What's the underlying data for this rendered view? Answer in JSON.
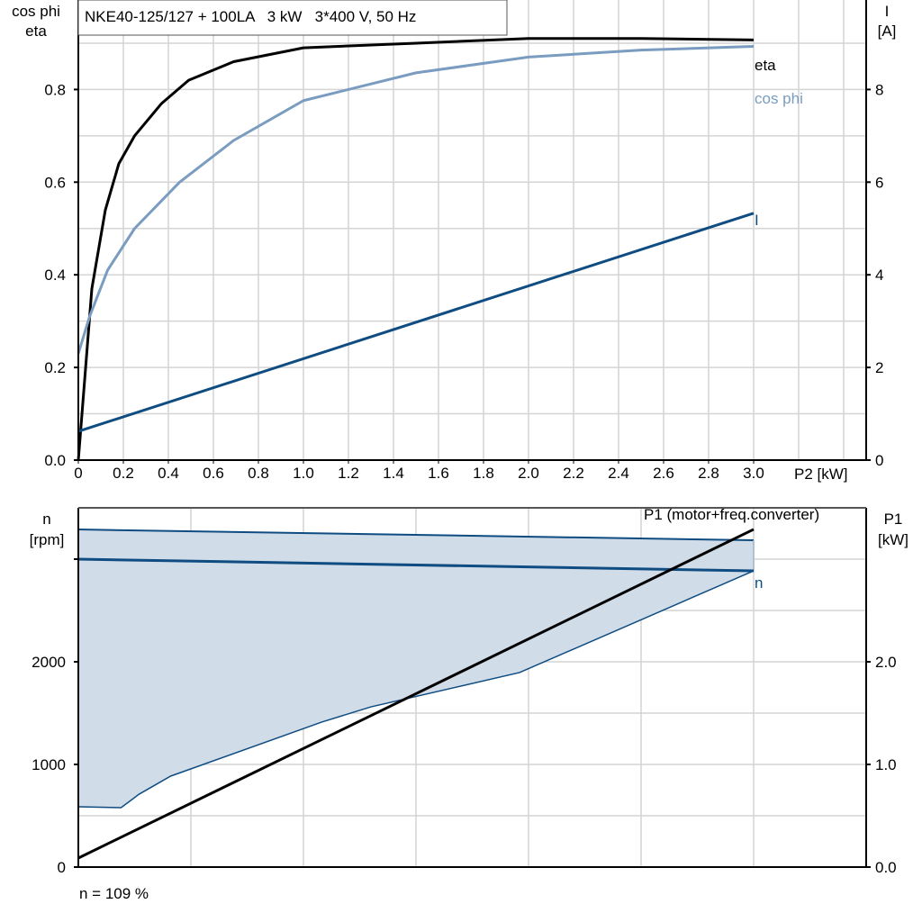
{
  "chart_data": [
    {
      "type": "line",
      "title": "NKE40-125/127 + 100LA   3 kW   3*400 V, 50 Hz",
      "xlabel": "P2 [kW]",
      "ylabel_left": [
        "cos phi",
        "eta"
      ],
      "ylabel_right": [
        "I",
        "[A]"
      ],
      "xlim": [
        0,
        3.5
      ],
      "ylim_left": [
        0,
        1.0
      ],
      "ylim_right": [
        0,
        10
      ],
      "x_ticks": [
        "0",
        "0.2",
        "0.4",
        "0.6",
        "0.8",
        "1.0",
        "1.2",
        "1.4",
        "1.6",
        "1.8",
        "2.0",
        "2.2",
        "2.4",
        "2.6",
        "2.8",
        "3.0"
      ],
      "y_ticks_left": [
        "0.0",
        "0.2",
        "0.4",
        "0.6",
        "0.8"
      ],
      "y_ticks_right": [
        "0",
        "2",
        "4",
        "6",
        "8"
      ],
      "grid": true,
      "series": [
        {
          "name": "eta",
          "axis": "left",
          "color": "#000000",
          "x": [
            0,
            0.06,
            0.12,
            0.18,
            0.25,
            0.37,
            0.49,
            0.69,
            1.0,
            1.5,
            2.0,
            2.5,
            3.0
          ],
          "y": [
            0,
            0.37,
            0.54,
            0.64,
            0.7,
            0.77,
            0.82,
            0.86,
            0.89,
            0.9,
            0.91,
            0.91,
            0.907
          ]
        },
        {
          "name": "cos phi",
          "axis": "left",
          "color": "#7a9cc0",
          "x": [
            0,
            0.05,
            0.13,
            0.25,
            0.45,
            0.69,
            1.0,
            1.5,
            2.0,
            2.5,
            3.0
          ],
          "y": [
            0.23,
            0.31,
            0.41,
            0.5,
            0.6,
            0.69,
            0.776,
            0.836,
            0.87,
            0.885,
            0.893
          ]
        },
        {
          "name": "I",
          "axis": "right",
          "color": "#0f4c81",
          "x": [
            0,
            3.0
          ],
          "y": [
            0.62,
            5.33
          ]
        }
      ]
    },
    {
      "type": "line",
      "ylabel_left": [
        "n",
        "[rpm]"
      ],
      "ylabel_right": [
        "P1",
        "[kW]"
      ],
      "xlim": [
        0,
        3.5
      ],
      "ylim_left": [
        0,
        3500
      ],
      "ylim_right": [
        0,
        3.5
      ],
      "y_ticks_left": [
        "0",
        "1000",
        "2000"
      ],
      "y_ticks_right": [
        "0.0",
        "1.0",
        "2.0"
      ],
      "grid": true,
      "annotation": "n = 109 %",
      "band": {
        "color": "#d0dce8",
        "edge_color": "#0f4c81",
        "upper": {
          "x": [
            0,
            3.0
          ],
          "y": [
            3289,
            3184
          ]
        },
        "lower": {
          "x": [
            0,
            0.19,
            0.27,
            0.41,
            1.08,
            1.3,
            1.96,
            3.0
          ],
          "y": [
            588,
            579,
            710,
            886,
            1412,
            1561,
            1895,
            2886
          ]
        }
      },
      "series": [
        {
          "name": "n",
          "axis": "left",
          "color": "#0f4c81",
          "x": [
            0,
            3.0
          ],
          "y": [
            3000,
            2886
          ]
        },
        {
          "name": "P1 (motor+freq.converter)",
          "axis": "right",
          "color": "#000000",
          "x": [
            0,
            3.0
          ],
          "y": [
            0.088,
            3.29
          ]
        }
      ]
    }
  ]
}
